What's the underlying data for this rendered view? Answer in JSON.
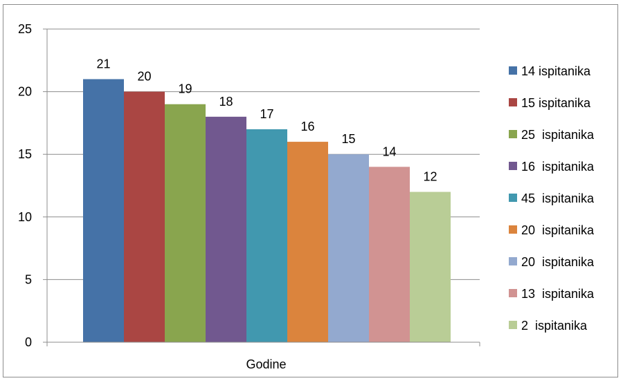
{
  "chart_data": {
    "type": "bar",
    "categories": [
      "Godine"
    ],
    "xlabel": "",
    "ylabel": "",
    "title": "",
    "ylim": [
      0,
      25
    ],
    "yticks": [
      0,
      5,
      10,
      15,
      20,
      25
    ],
    "grid": true,
    "legend_position": "right",
    "series": [
      {
        "name": "14 ispitanika",
        "values": [
          21
        ],
        "color": "#4572A7"
      },
      {
        "name": "15 ispitanika",
        "values": [
          20
        ],
        "color": "#AA4643"
      },
      {
        "name": "25  ispitanika",
        "values": [
          19
        ],
        "color": "#89A54E"
      },
      {
        "name": "16  ispitanika",
        "values": [
          18
        ],
        "color": "#71588F"
      },
      {
        "name": "45  ispitanika",
        "values": [
          17
        ],
        "color": "#4198AF"
      },
      {
        "name": "20  ispitanika",
        "values": [
          16
        ],
        "color": "#DB843D"
      },
      {
        "name": "20  ispitanika",
        "values": [
          15
        ],
        "color": "#93A9CF"
      },
      {
        "name": "13  ispitanika",
        "values": [
          14
        ],
        "color": "#D19392"
      },
      {
        "name": "2  ispitanika",
        "values": [
          12
        ],
        "color": "#B9CD96"
      }
    ]
  }
}
